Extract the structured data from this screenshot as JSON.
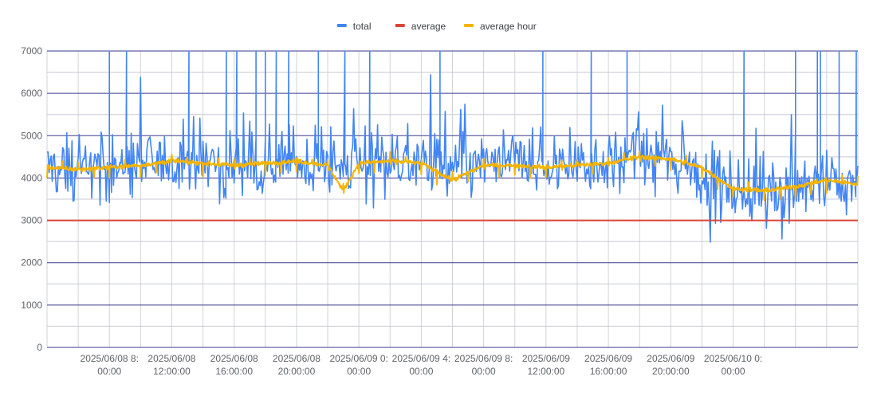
{
  "chart_data": {
    "type": "line",
    "title": "",
    "xlabel": "",
    "ylabel": "",
    "ylim": [
      0,
      7000
    ],
    "y_ticks": [
      "0",
      "1000",
      "2000",
      "3000",
      "4000",
      "5000",
      "6000",
      "7000"
    ],
    "x_range": [
      "2025-06-08T04:00",
      "2025-06-10T08:00"
    ],
    "x_ticks": [
      {
        "t": "2025-06-08T08:00",
        "line1": "2025/06/08 8:",
        "line2": "00:00"
      },
      {
        "t": "2025-06-08T12:00",
        "line1": "2025/06/08",
        "line2": "12:00:00"
      },
      {
        "t": "2025-06-08T16:00",
        "line1": "2025/06/08",
        "line2": "16:00:00"
      },
      {
        "t": "2025-06-08T20:00",
        "line1": "2025/06/08",
        "line2": "20:00:00"
      },
      {
        "t": "2025-06-09T00:00",
        "line1": "2025/06/09 0:",
        "line2": "00:00"
      },
      {
        "t": "2025-06-09T04:00",
        "line1": "2025/06/09 4:",
        "line2": "00:00"
      },
      {
        "t": "2025-06-09T08:00",
        "line1": "2025/06/09 8:",
        "line2": "00:00"
      },
      {
        "t": "2025-06-09T12:00",
        "line1": "2025/06/09",
        "line2": "12:00:00"
      },
      {
        "t": "2025-06-09T16:00",
        "line1": "2025/06/09",
        "line2": "16:00:00"
      },
      {
        "t": "2025-06-09T20:00",
        "line1": "2025/06/09",
        "line2": "20:00:00"
      },
      {
        "t": "2025-06-10T00:00",
        "line1": "2025/06/10 0:",
        "line2": "00:00"
      }
    ],
    "legend_position": "top",
    "grid": true,
    "series": [
      {
        "name": "total",
        "color": "#4285f4",
        "kind": "noisy",
        "x": [
          "2025-06-08T04:00",
          "2025-06-08T06:00",
          "2025-06-08T08:00",
          "2025-06-08T10:00",
          "2025-06-08T12:00",
          "2025-06-08T14:00",
          "2025-06-08T16:00",
          "2025-06-08T18:00",
          "2025-06-08T20:00",
          "2025-06-08T22:00",
          "2025-06-09T00:00",
          "2025-06-09T02:00",
          "2025-06-09T04:00",
          "2025-06-09T06:00",
          "2025-06-09T08:00",
          "2025-06-09T10:00",
          "2025-06-09T12:00",
          "2025-06-09T14:00",
          "2025-06-09T16:00",
          "2025-06-09T18:00",
          "2025-06-09T20:00",
          "2025-06-09T22:00",
          "2025-06-10T00:00",
          "2025-06-10T02:00",
          "2025-06-10T04:00",
          "2025-06-10T06:00",
          "2025-06-10T08:00"
        ],
        "center": [
          4250,
          4250,
          4250,
          4300,
          4400,
          4350,
          4350,
          4400,
          4350,
          4200,
          4400,
          4450,
          4400,
          4150,
          4350,
          4350,
          4300,
          4350,
          4400,
          4500,
          4450,
          4100,
          3700,
          3750,
          3800,
          3900,
          3850
        ],
        "spread": [
          650,
          650,
          650,
          650,
          650,
          650,
          650,
          650,
          650,
          700,
          650,
          650,
          650,
          650,
          650,
          650,
          650,
          650,
          650,
          650,
          650,
          700,
          750,
          700,
          700,
          650,
          650
        ],
        "min_value": 2300,
        "spikes": [
          {
            "x": "2025-06-08T08:00",
            "value": 7000
          },
          {
            "x": "2025-06-08T09:06",
            "value": 7000
          },
          {
            "x": "2025-06-08T13:06",
            "value": 7000
          },
          {
            "x": "2025-06-08T15:30",
            "value": 7000
          },
          {
            "x": "2025-06-08T16:10",
            "value": 7000
          },
          {
            "x": "2025-06-08T17:24",
            "value": 7000
          },
          {
            "x": "2025-06-08T18:00",
            "value": 7000
          },
          {
            "x": "2025-06-08T18:42",
            "value": 7000
          },
          {
            "x": "2025-06-08T19:30",
            "value": 7000
          },
          {
            "x": "2025-06-08T21:24",
            "value": 7000
          },
          {
            "x": "2025-06-08T23:06",
            "value": 7000
          },
          {
            "x": "2025-06-09T00:42",
            "value": 7000
          },
          {
            "x": "2025-06-09T05:12",
            "value": 7000
          },
          {
            "x": "2025-06-09T11:48",
            "value": 7000
          },
          {
            "x": "2025-06-09T14:54",
            "value": 7000
          },
          {
            "x": "2025-06-09T17:12",
            "value": 7000
          },
          {
            "x": "2025-06-10T00:42",
            "value": 7000
          },
          {
            "x": "2025-06-10T04:00",
            "value": 7000
          },
          {
            "x": "2025-06-10T05:24",
            "value": 7000
          },
          {
            "x": "2025-06-10T05:36",
            "value": 7000
          },
          {
            "x": "2025-06-10T06:48",
            "value": 7000
          },
          {
            "x": "2025-06-10T07:54",
            "value": 7000
          }
        ]
      },
      {
        "name": "average",
        "color": "#db4437",
        "kind": "flat",
        "value": 3000
      },
      {
        "name": "average hour",
        "color": "#f4b400",
        "kind": "hourly",
        "x": [
          "2025-06-08T04:00",
          "2025-06-08T06:00",
          "2025-06-08T08:00",
          "2025-06-08T10:00",
          "2025-06-08T12:00",
          "2025-06-08T14:00",
          "2025-06-08T16:00",
          "2025-06-08T18:00",
          "2025-06-08T20:00",
          "2025-06-08T22:00",
          "2025-06-08T23:00",
          "2025-06-09T00:00",
          "2025-06-09T02:00",
          "2025-06-09T04:00",
          "2025-06-09T06:00",
          "2025-06-09T08:00",
          "2025-06-09T10:00",
          "2025-06-09T12:00",
          "2025-06-09T14:00",
          "2025-06-09T16:00",
          "2025-06-09T18:00",
          "2025-06-09T20:00",
          "2025-06-09T22:00",
          "2025-06-10T00:00",
          "2025-06-10T02:00",
          "2025-06-10T04:00",
          "2025-06-10T06:00",
          "2025-06-10T08:00"
        ],
        "values": [
          4250,
          4200,
          4250,
          4300,
          4400,
          4350,
          4300,
          4350,
          4400,
          4300,
          3700,
          4350,
          4400,
          4350,
          3950,
          4300,
          4300,
          4250,
          4300,
          4350,
          4500,
          4450,
          4250,
          3750,
          3700,
          3800,
          3950,
          3850
        ]
      }
    ]
  }
}
